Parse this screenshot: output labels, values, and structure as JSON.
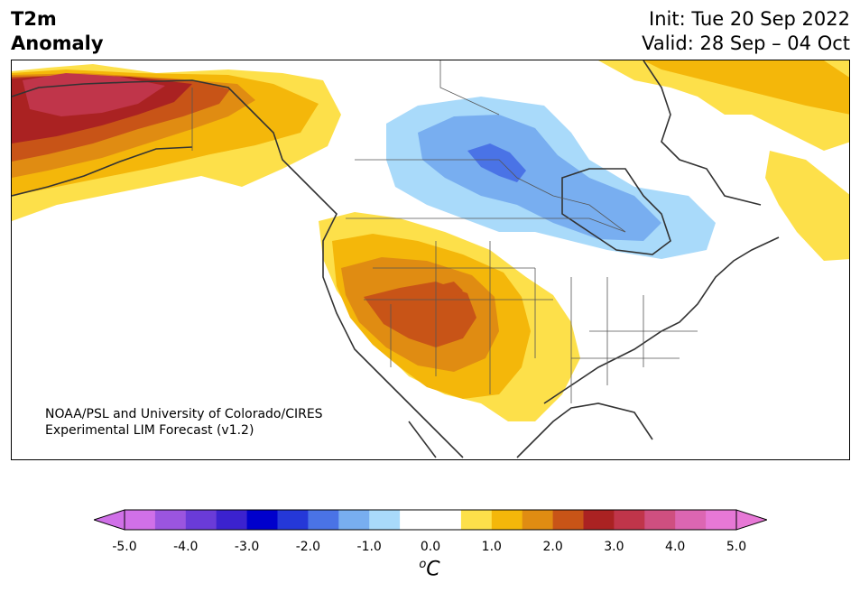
{
  "header": {
    "variable": "T2m",
    "metric": "Anomaly",
    "init": "Init: Tue 20 Sep 2022",
    "valid": "Valid: 28 Sep – 04 Oct"
  },
  "credit": {
    "line1": "NOAA/PSL and University of Colorado/CIRES",
    "line2": "Experimental LIM Forecast (v1.2)"
  },
  "colorbar": {
    "unit_prefix": "o",
    "unit": "C",
    "ticks": [
      "-5.0",
      "-4.0",
      "-3.0",
      "-2.0",
      "-1.0",
      "0.0",
      "1.0",
      "2.0",
      "3.0",
      "4.0",
      "5.0"
    ],
    "colors": [
      "#d070e8",
      "#9b55df",
      "#6a3bd8",
      "#3b22cf",
      "#0000cc",
      "#2538d8",
      "#4a73e6",
      "#78aef0",
      "#a9dafa",
      "#ffffff",
      "#ffffff",
      "#fde04a",
      "#f4b70a",
      "#e08c12",
      "#c85417",
      "#aa2222",
      "#c0354a",
      "#cf4f80",
      "#dc66b2",
      "#e778d6"
    ],
    "under_color": "#d070e8",
    "over_color": "#e778d6"
  }
}
